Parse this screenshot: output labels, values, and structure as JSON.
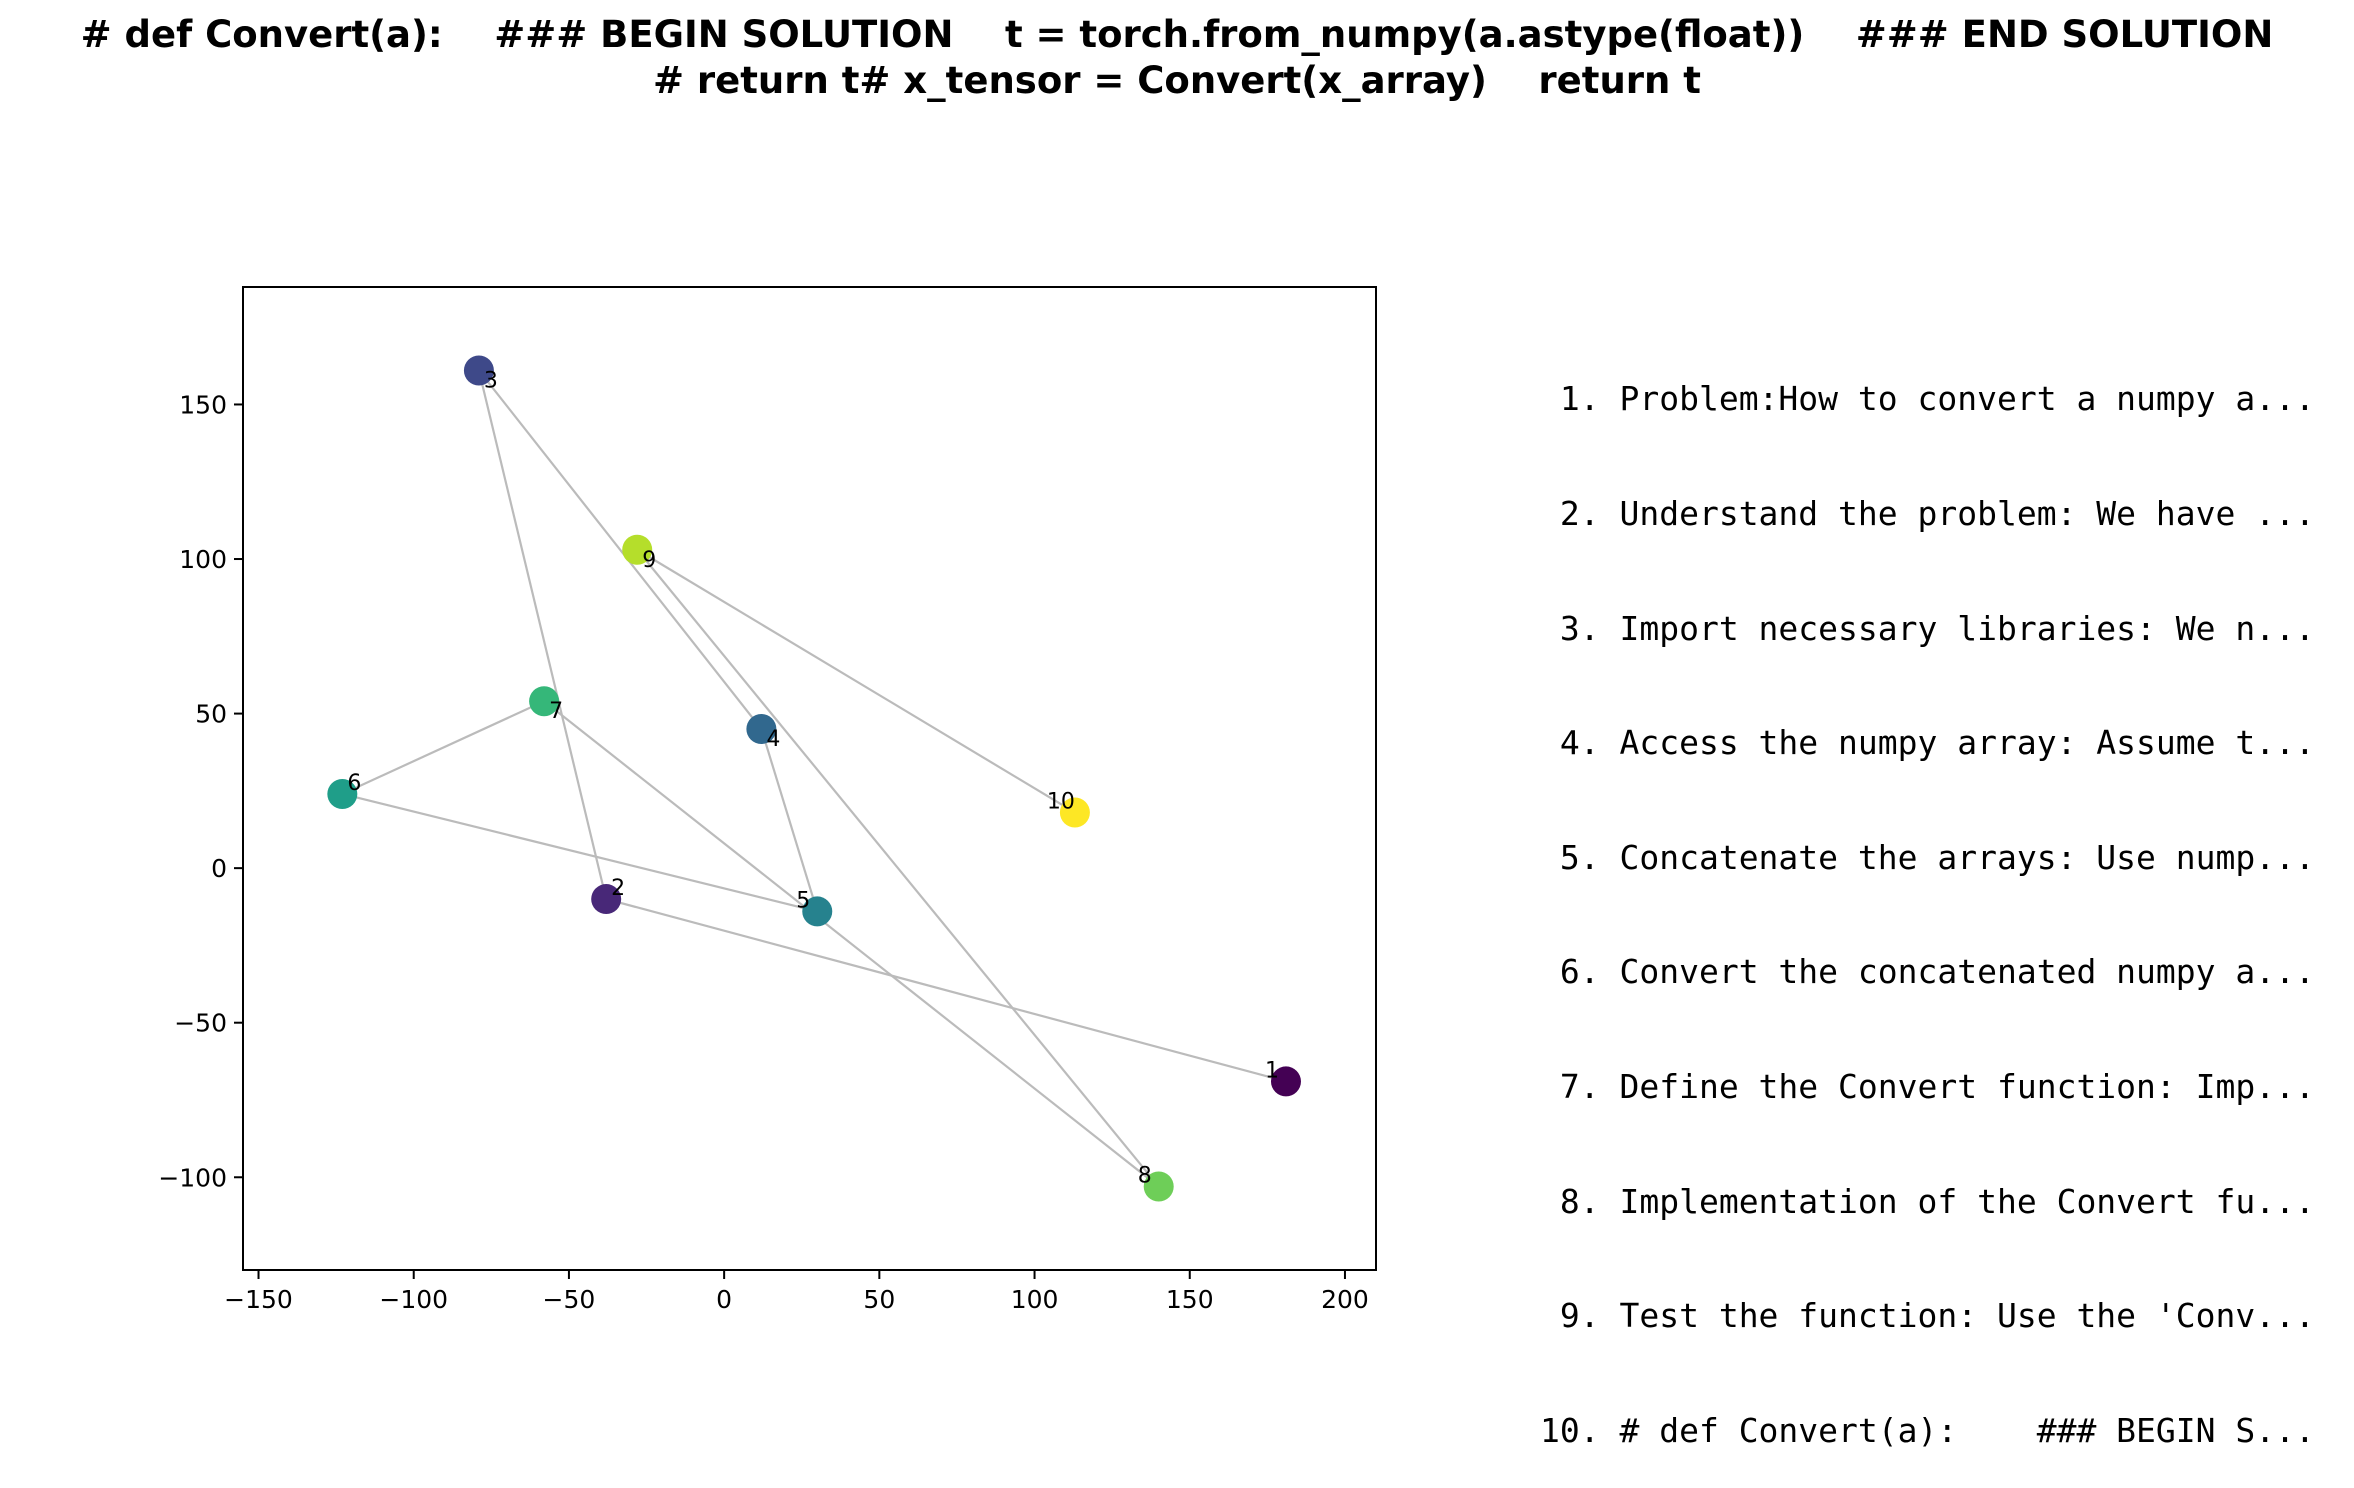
{
  "figure": {
    "title_line1": "# def Convert(a):    ### BEGIN SOLUTION    t = torch.from_numpy(a.astype(float))    ### END SOLUTION",
    "title_line2": "# return t# x_tensor = Convert(x_array)    return t"
  },
  "chart_data": {
    "type": "scatter",
    "title": "# def Convert(a):    ### BEGIN SOLUTION    t = torch.from_numpy(a.astype(float))    ### END SOLUTION    # return t# x_tensor = Convert(x_array)    return t",
    "xlabel": "",
    "ylabel": "",
    "xlim": [
      -155,
      210
    ],
    "ylim": [
      -130,
      188
    ],
    "xticks": [
      -150,
      -100,
      -50,
      0,
      50,
      100,
      150,
      200
    ],
    "yticks": [
      -100,
      -50,
      0,
      50,
      100,
      150
    ],
    "xtick_labels": [
      "−150",
      "−100",
      "−50",
      "0",
      "50",
      "100",
      "150",
      "200"
    ],
    "ytick_labels": [
      "−100",
      "−50",
      "0",
      "50",
      "100",
      "150"
    ],
    "grid": false,
    "colormap": "viridis",
    "connect_in_order": true,
    "line_color": "#bbbbbb",
    "points": [
      {
        "label": "1",
        "x": 181,
        "y": -69,
        "color": "#440154"
      },
      {
        "label": "2",
        "x": -38,
        "y": -10,
        "color": "#482878"
      },
      {
        "label": "3",
        "x": -79,
        "y": 161,
        "color": "#3e4989"
      },
      {
        "label": "4",
        "x": 12,
        "y": 45,
        "color": "#31688e"
      },
      {
        "label": "5",
        "x": 30,
        "y": -14,
        "color": "#26828e"
      },
      {
        "label": "6",
        "x": -123,
        "y": 24,
        "color": "#1f9e89"
      },
      {
        "label": "7",
        "x": -58,
        "y": 54,
        "color": "#35b779"
      },
      {
        "label": "8",
        "x": 140,
        "y": -103,
        "color": "#6ece58"
      },
      {
        "label": "9",
        "x": -28,
        "y": 103,
        "color": "#b5de2b"
      },
      {
        "label": "10",
        "x": 113,
        "y": 18,
        "color": "#fde725"
      }
    ]
  },
  "steps": [
    {
      "number": " 1.",
      "text": "Problem:How to convert a numpy a..."
    },
    {
      "number": " 2.",
      "text": "Understand the problem: We have ..."
    },
    {
      "number": " 3.",
      "text": "Import necessary libraries: We n..."
    },
    {
      "number": " 4.",
      "text": "Access the numpy array: Assume t..."
    },
    {
      "number": " 5.",
      "text": "Concatenate the arrays: Use nump..."
    },
    {
      "number": " 6.",
      "text": "Convert the concatenated numpy a..."
    },
    {
      "number": " 7.",
      "text": "Define the Convert function: Imp..."
    },
    {
      "number": " 8.",
      "text": "Implementation of the Convert fu..."
    },
    {
      "number": " 9.",
      "text": "Test the function: Use the 'Conv..."
    },
    {
      "number": "10.",
      "text": "# def Convert(a):    ### BEGIN S..."
    }
  ]
}
